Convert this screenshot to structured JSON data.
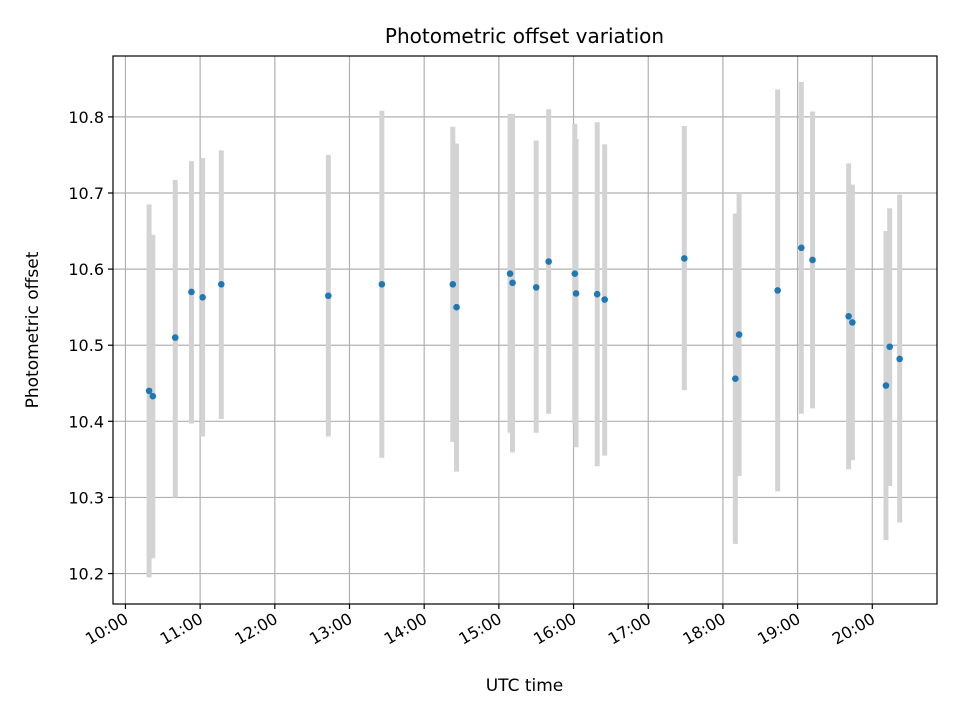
{
  "chart_data": {
    "type": "scatter",
    "title": "Photometric offset variation",
    "xlabel": "UTC time",
    "ylabel": "Photometric offset",
    "xlim": [
      "09:50",
      "20:52"
    ],
    "ylim": [
      10.16,
      10.88
    ],
    "grid": true,
    "legend": "none",
    "x_ticks": [
      "10:00",
      "11:00",
      "12:00",
      "13:00",
      "14:00",
      "15:00",
      "16:00",
      "17:00",
      "18:00",
      "19:00",
      "20:00"
    ],
    "y_ticks": [
      "10.2",
      "10.3",
      "10.4",
      "10.5",
      "10.6",
      "10.7",
      "10.8"
    ],
    "colors": {
      "point": "#1f77b4",
      "errorbar": "#d3d3d3",
      "grid": "#b0b0b0"
    },
    "series": [
      {
        "points": [
          {
            "x": "10:19",
            "y": 10.44,
            "ylo": 10.195,
            "yhi": 10.685
          },
          {
            "x": "10:22",
            "y": 10.433,
            "ylo": 10.22,
            "yhi": 10.645
          },
          {
            "x": "10:40",
            "y": 10.51,
            "ylo": 10.3,
            "yhi": 10.717
          },
          {
            "x": "10:53",
            "y": 10.57,
            "ylo": 10.397,
            "yhi": 10.742
          },
          {
            "x": "11:02",
            "y": 10.563,
            "ylo": 10.38,
            "yhi": 10.746
          },
          {
            "x": "11:17",
            "y": 10.58,
            "ylo": 10.403,
            "yhi": 10.756
          },
          {
            "x": "12:43",
            "y": 10.565,
            "ylo": 10.38,
            "yhi": 10.75
          },
          {
            "x": "13:26",
            "y": 10.58,
            "ylo": 10.352,
            "yhi": 10.808
          },
          {
            "x": "14:23",
            "y": 10.58,
            "ylo": 10.373,
            "yhi": 10.787
          },
          {
            "x": "14:26",
            "y": 10.55,
            "ylo": 10.334,
            "yhi": 10.765
          },
          {
            "x": "15:09",
            "y": 10.594,
            "ylo": 10.385,
            "yhi": 10.804
          },
          {
            "x": "15:11",
            "y": 10.582,
            "ylo": 10.359,
            "yhi": 10.804
          },
          {
            "x": "15:30",
            "y": 10.576,
            "ylo": 10.385,
            "yhi": 10.769
          },
          {
            "x": "15:40",
            "y": 10.61,
            "ylo": 10.41,
            "yhi": 10.81
          },
          {
            "x": "16:01",
            "y": 10.594,
            "ylo": 10.397,
            "yhi": 10.791
          },
          {
            "x": "16:02",
            "y": 10.568,
            "ylo": 10.366,
            "yhi": 10.771
          },
          {
            "x": "16:19",
            "y": 10.567,
            "ylo": 10.341,
            "yhi": 10.793
          },
          {
            "x": "16:25",
            "y": 10.56,
            "ylo": 10.355,
            "yhi": 10.764
          },
          {
            "x": "17:29",
            "y": 10.614,
            "ylo": 10.441,
            "yhi": 10.788
          },
          {
            "x": "18:10",
            "y": 10.456,
            "ylo": 10.239,
            "yhi": 10.673
          },
          {
            "x": "18:13",
            "y": 10.514,
            "ylo": 10.328,
            "yhi": 10.7
          },
          {
            "x": "18:44",
            "y": 10.572,
            "ylo": 10.308,
            "yhi": 10.836
          },
          {
            "x": "19:03",
            "y": 10.628,
            "ylo": 10.41,
            "yhi": 10.846
          },
          {
            "x": "19:12",
            "y": 10.612,
            "ylo": 10.417,
            "yhi": 10.807
          },
          {
            "x": "19:41",
            "y": 10.538,
            "ylo": 10.337,
            "yhi": 10.739
          },
          {
            "x": "19:44",
            "y": 10.53,
            "ylo": 10.349,
            "yhi": 10.711
          },
          {
            "x": "20:11",
            "y": 10.447,
            "ylo": 10.244,
            "yhi": 10.65
          },
          {
            "x": "20:14",
            "y": 10.498,
            "ylo": 10.315,
            "yhi": 10.68
          },
          {
            "x": "20:22",
            "y": 10.482,
            "ylo": 10.267,
            "yhi": 10.698
          }
        ]
      }
    ]
  }
}
